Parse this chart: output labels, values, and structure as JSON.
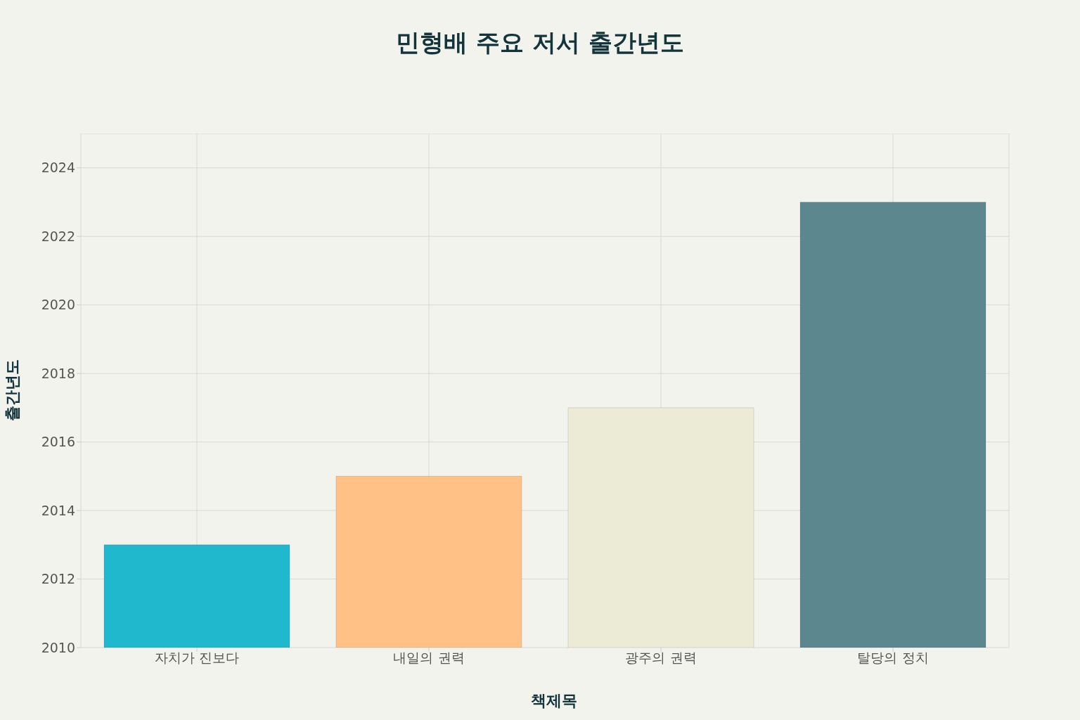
{
  "chart_data": {
    "type": "bar",
    "title": "민형배 주요 저서 출간년도",
    "xlabel": "책제목",
    "ylabel": "출간년도",
    "categories": [
      "자치가 진보다",
      "내일의 권력",
      "광주의 권력",
      "탈당의 정치"
    ],
    "values": [
      2013,
      2015,
      2017,
      2023
    ],
    "colors": [
      "#1fb8cd",
      "#ffc185",
      "#ecebd5",
      "#5d878f"
    ],
    "ylim": [
      2010,
      2025
    ],
    "yticks": [
      2010,
      2012,
      2014,
      2016,
      2018,
      2020,
      2022,
      2024
    ],
    "grid": true,
    "legend": false
  }
}
